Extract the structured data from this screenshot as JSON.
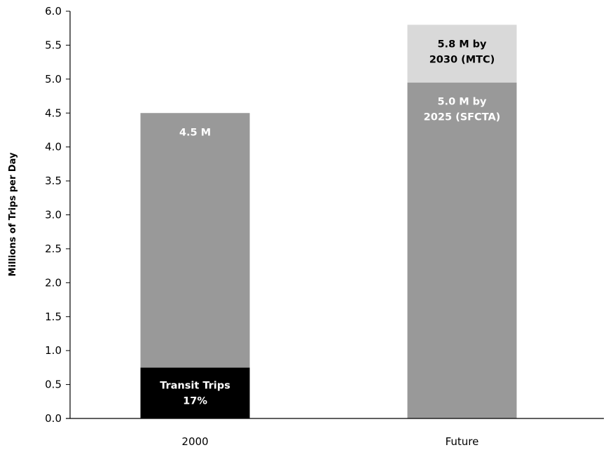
{
  "chart_data": {
    "type": "bar",
    "stacked": true,
    "title": "",
    "xlabel": "",
    "ylabel": "Millions of Trips per Day",
    "ylim": [
      0,
      6.0
    ],
    "ytick_step": 0.5,
    "grid": false,
    "categories": [
      "2000",
      "Future"
    ],
    "series": [
      {
        "color": "#000000",
        "text_color": "#ffffff",
        "values": [
          0.75,
          0
        ],
        "labels": [
          [
            "Transit Trips",
            "17%"
          ],
          []
        ]
      },
      {
        "color": "#999999",
        "text_color": "#ffffff",
        "values": [
          3.75,
          4.95
        ],
        "labels": [
          [
            "4.5 M"
          ],
          [
            "5.0 M by",
            "2025 (SFCTA)"
          ]
        ]
      },
      {
        "color": "#d9d9d9",
        "text_color": "#000000",
        "values": [
          0,
          0.85
        ],
        "labels": [
          [],
          [
            "5.8 M by",
            "2030 (MTC)"
          ]
        ]
      }
    ]
  }
}
